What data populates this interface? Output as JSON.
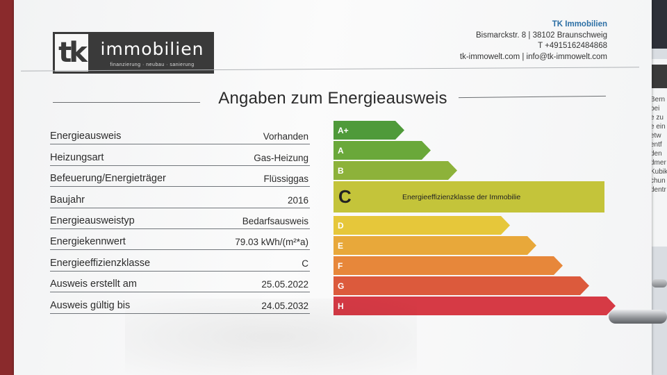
{
  "company": {
    "logo_letters": "tk",
    "logo_name": "immobilien",
    "logo_tagline": "finanzierung · neubau · sanierung",
    "name": "TK Immobilien",
    "address": "Bismarckstr. 8 | 38102 Braunschweig",
    "phone": "T +4915162484868",
    "web": "tk-immowelt.com | info@tk-immowelt.com"
  },
  "title": "Angaben zum Energieausweis",
  "rows": [
    {
      "label": "Energieausweis",
      "value": "Vorhanden"
    },
    {
      "label": "Heizungsart",
      "value": "Gas-Heizung"
    },
    {
      "label": "Befeuerung/Energieträger",
      "value": "Flüssiggas"
    },
    {
      "label": "Baujahr",
      "value": "2016"
    },
    {
      "label": "Energieausweistyp",
      "value": "Bedarfsausweis"
    },
    {
      "label": "Energiekennwert",
      "value": "79.03 kWh/(m²*a)"
    },
    {
      "label": "Energieeffizienzklasse",
      "value": "C"
    },
    {
      "label": "Ausweis erstellt am",
      "value": "25.05.2022"
    },
    {
      "label": "Ausweis gültig bis",
      "value": "24.05.2032"
    }
  ],
  "efficiency_scale": {
    "selected_class": "C",
    "selected_note": "Energieeffizienzklasse der Immobilie",
    "classes": [
      {
        "label": "A+",
        "color": "#4f9a3a"
      },
      {
        "label": "A",
        "color": "#6aa83a"
      },
      {
        "label": "B",
        "color": "#8db23a"
      },
      {
        "label": "C",
        "color": "#c4c43a"
      },
      {
        "label": "D",
        "color": "#e6c73a"
      },
      {
        "label": "E",
        "color": "#e8a83a"
      },
      {
        "label": "F",
        "color": "#e7873a"
      },
      {
        "label": "G",
        "color": "#dc5a3c"
      },
      {
        "label": "H",
        "color": "#d63a45"
      }
    ]
  },
  "next_page_fragments": [
    "Bern",
    "bei",
    "e zu",
    "e ein",
    "etw",
    "entf",
    "den",
    "dmer",
    "Kubik",
    "chun",
    "dentr"
  ]
}
